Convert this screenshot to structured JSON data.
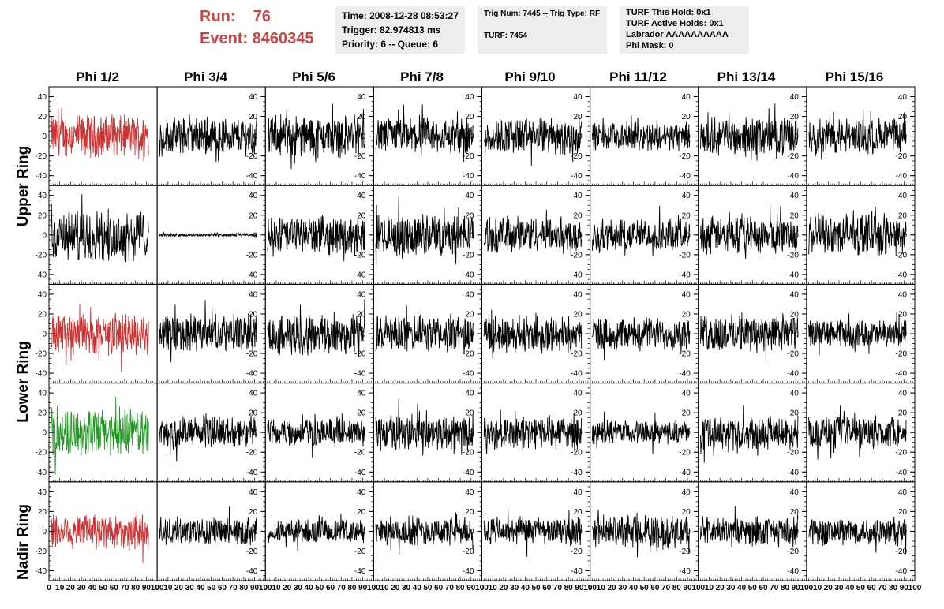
{
  "header": {
    "run_label": "Run:",
    "run_value": "76",
    "event_label": "Event:",
    "event_value": "8460345"
  },
  "time_box": {
    "time": "Time: 2008-12-28 08:53:27",
    "trigger": "Trigger: 82.974813 ms",
    "priority": "Priority: 6 -- Queue: 6"
  },
  "trig_box": {
    "trig": "Trig Num: 7445 -- Trig Type: RF",
    "turf": "TURF: 7454"
  },
  "turf_box": {
    "this_hold": "TURF This Hold: 0x1",
    "active_holds": "TURF Active Holds: 0x1",
    "labrador": "Labrador AAAAAAAAAA",
    "phi_mask": "Phi Mask: 0"
  },
  "columns": [
    "Phi 1/2",
    "Phi 3/4",
    "Phi 5/6",
    "Phi 7/8",
    "Phi 9/10",
    "Phi 11/12",
    "Phi 13/14",
    "Phi 15/16"
  ],
  "rings": [
    "Upper Ring",
    "Lower Ring",
    "Nadir Ring"
  ],
  "y_ticks": [
    "-40",
    "-20",
    "0",
    "20",
    "40"
  ],
  "x_ticks": [
    "0",
    "10",
    "20",
    "30",
    "40",
    "50",
    "60",
    "70",
    "80",
    "90",
    "100"
  ],
  "colors": {
    "normal": "#000000",
    "red": "#cc3333",
    "green": "#229922",
    "info_bg": "#eeeeee",
    "title_red": "#cc4444"
  },
  "chart_data": {
    "type": "line",
    "xlim": [
      0,
      100
    ],
    "ylim": [
      -50,
      50
    ],
    "rows": 5,
    "cols": 8,
    "amplitude_note_row_col": [
      [
        18,
        16,
        18,
        16,
        16,
        12,
        16,
        16
      ],
      [
        22,
        1.5,
        16,
        18,
        16,
        14,
        16,
        18
      ],
      [
        18,
        16,
        18,
        16,
        16,
        14,
        16,
        12
      ],
      [
        20,
        14,
        12,
        16,
        14,
        10,
        14,
        14
      ],
      [
        16,
        12,
        10,
        12,
        12,
        14,
        12,
        12
      ]
    ],
    "trace_colors": [
      [
        "red",
        "normal",
        "normal",
        "normal",
        "normal",
        "normal",
        "normal",
        "normal"
      ],
      [
        "normal",
        "normal",
        "normal",
        "normal",
        "normal",
        "normal",
        "normal",
        "normal"
      ],
      [
        "red",
        "normal",
        "normal",
        "normal",
        "normal",
        "normal",
        "normal",
        "normal"
      ],
      [
        "green",
        "normal",
        "normal",
        "normal",
        "normal",
        "normal",
        "normal",
        "normal"
      ],
      [
        "red",
        "normal",
        "normal",
        "normal",
        "normal",
        "normal",
        "normal",
        "normal"
      ]
    ],
    "points_per_trace": 260
  }
}
